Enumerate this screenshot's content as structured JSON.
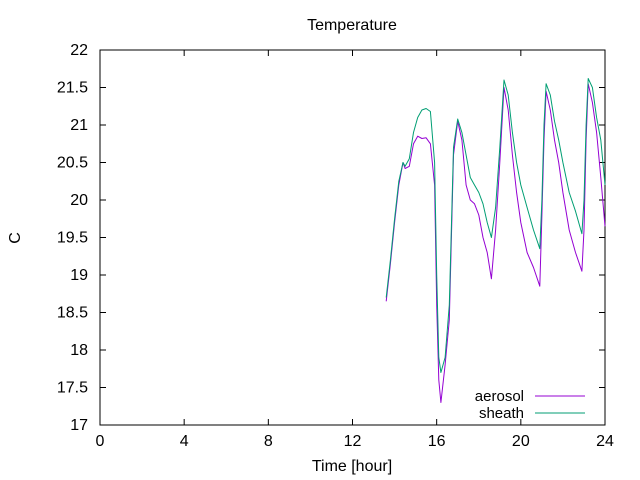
{
  "chart_data": {
    "type": "line",
    "title": "Temperature",
    "xlabel": "Time [hour]",
    "ylabel": "C",
    "xlim": [
      0,
      24
    ],
    "ylim": [
      17,
      22
    ],
    "xticks": [
      0,
      4,
      8,
      12,
      16,
      20,
      24
    ],
    "yticks": [
      17,
      17.5,
      18,
      18.5,
      19,
      19.5,
      20,
      20.5,
      21,
      21.5,
      22
    ],
    "ytick_labels": [
      "17",
      "17.5",
      "18",
      "18.5",
      "19",
      "19.5",
      "20",
      "20.5",
      "21",
      "21.5",
      "22"
    ],
    "grid": false,
    "legend_position": "bottom-right",
    "series": [
      {
        "name": "aerosol",
        "color": "#9400d3",
        "x": [
          13.6,
          13.8,
          14.0,
          14.2,
          14.4,
          14.5,
          14.7,
          14.9,
          15.1,
          15.3,
          15.5,
          15.7,
          15.9,
          16.0,
          16.1,
          16.2,
          16.3,
          16.4,
          16.6,
          16.8,
          17.0,
          17.2,
          17.4,
          17.6,
          17.8,
          18.0,
          18.2,
          18.4,
          18.6,
          18.8,
          19.0,
          19.2,
          19.4,
          19.6,
          19.8,
          20.0,
          20.3,
          20.6,
          20.9,
          21.0,
          21.1,
          21.2,
          21.4,
          21.6,
          21.8,
          22.0,
          22.3,
          22.6,
          22.9,
          23.0,
          23.1,
          23.2,
          23.4,
          23.6,
          23.8,
          24.0
        ],
        "y": [
          18.65,
          19.15,
          19.7,
          20.2,
          20.5,
          20.42,
          20.45,
          20.75,
          20.85,
          20.82,
          20.83,
          20.75,
          20.2,
          18.6,
          17.6,
          17.3,
          17.55,
          17.8,
          18.4,
          20.6,
          21.05,
          20.8,
          20.2,
          20.0,
          19.95,
          19.8,
          19.5,
          19.3,
          18.95,
          19.6,
          20.5,
          21.5,
          21.2,
          20.6,
          20.1,
          19.7,
          19.3,
          19.1,
          18.85,
          19.8,
          20.8,
          21.45,
          21.2,
          20.8,
          20.5,
          20.1,
          19.6,
          19.3,
          19.05,
          19.6,
          20.8,
          21.55,
          21.3,
          20.9,
          20.3,
          19.65
        ]
      },
      {
        "name": "sheath",
        "color": "#009e73",
        "x": [
          13.6,
          13.8,
          14.0,
          14.2,
          14.4,
          14.5,
          14.7,
          14.9,
          15.1,
          15.3,
          15.5,
          15.7,
          15.9,
          16.0,
          16.1,
          16.2,
          16.3,
          16.4,
          16.6,
          16.8,
          17.0,
          17.2,
          17.4,
          17.6,
          17.8,
          18.0,
          18.2,
          18.4,
          18.6,
          18.8,
          19.0,
          19.2,
          19.4,
          19.6,
          19.8,
          20.0,
          20.3,
          20.6,
          20.9,
          21.0,
          21.1,
          21.2,
          21.4,
          21.6,
          21.8,
          22.0,
          22.3,
          22.6,
          22.9,
          23.0,
          23.1,
          23.2,
          23.4,
          23.6,
          23.8,
          24.0
        ],
        "y": [
          18.7,
          19.2,
          19.75,
          20.25,
          20.5,
          20.45,
          20.55,
          20.9,
          21.1,
          21.2,
          21.22,
          21.18,
          20.5,
          19.0,
          17.9,
          17.7,
          17.8,
          17.9,
          18.6,
          20.7,
          21.08,
          20.9,
          20.6,
          20.3,
          20.2,
          20.1,
          19.95,
          19.7,
          19.5,
          19.9,
          20.7,
          21.6,
          21.4,
          20.9,
          20.5,
          20.2,
          19.9,
          19.6,
          19.35,
          20.0,
          21.0,
          21.55,
          21.4,
          21.05,
          20.8,
          20.5,
          20.1,
          19.85,
          19.55,
          20.0,
          21.0,
          21.62,
          21.5,
          21.1,
          20.8,
          20.2
        ]
      }
    ]
  }
}
